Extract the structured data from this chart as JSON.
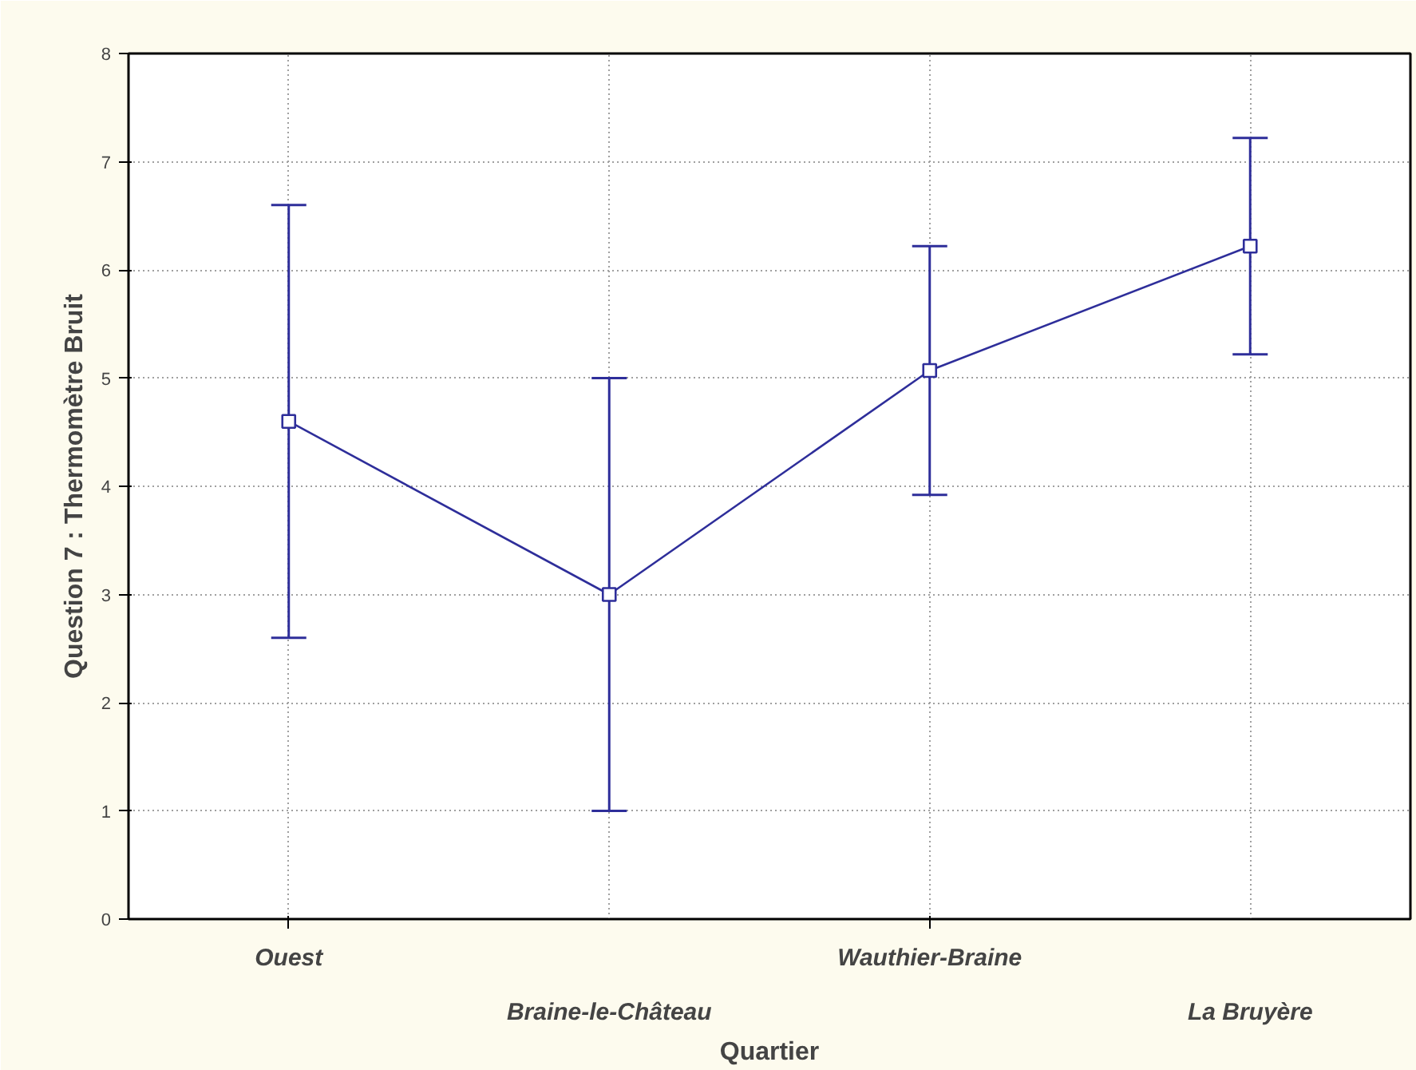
{
  "chart_data": {
    "type": "line",
    "xlabel": "Quartier",
    "ylabel": "Question 7 : Thermomètre Bruit",
    "categories": [
      "Ouest",
      "Braine-le-Château",
      "Wauthier-Braine",
      "La Bruyère"
    ],
    "series": [
      {
        "color": "#2e2e9a",
        "values": [
          4.6,
          3.0,
          5.07,
          6.22
        ],
        "errors": [
          2.0,
          2.0,
          1.15,
          1.0
        ]
      }
    ],
    "ylim": [
      0,
      8
    ],
    "yticks": [
      0,
      1,
      2,
      3,
      4,
      5,
      6,
      7,
      8
    ],
    "grid": true,
    "marker": "square",
    "line_style": "solid"
  }
}
